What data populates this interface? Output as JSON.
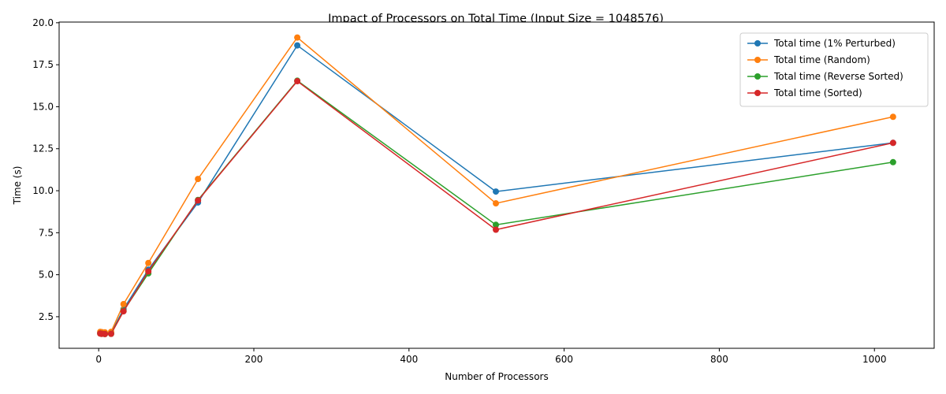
{
  "chart_data": {
    "type": "line",
    "title": "Impact of Processors on Total Time (Input Size = 1048576)",
    "xlabel": "Number of Processors",
    "ylabel": "Time (s)",
    "xlim": [
      -51,
      1077
    ],
    "ylim": [
      0.62,
      20.04
    ],
    "x_ticks": [
      0,
      200,
      400,
      600,
      800,
      1000
    ],
    "x_tick_labels": [
      "0",
      "200",
      "400",
      "600",
      "800",
      "1000"
    ],
    "y_ticks": [
      2.5,
      5.0,
      7.5,
      10.0,
      12.5,
      15.0,
      17.5,
      20.0
    ],
    "y_tick_labels": [
      "2.5",
      "5.0",
      "7.5",
      "10.0",
      "12.5",
      "15.0",
      "17.5",
      "20.0"
    ],
    "grid": false,
    "legend_position": "top-right",
    "x": [
      2,
      4,
      8,
      16,
      32,
      64,
      128,
      256,
      512,
      1024
    ],
    "series": [
      {
        "name": "Total time (1% Perturbed)",
        "color": "#1f77b4",
        "values": [
          1.55,
          1.53,
          1.52,
          1.53,
          2.95,
          5.3,
          9.3,
          18.65,
          9.95,
          12.85
        ]
      },
      {
        "name": "Total time (Random)",
        "color": "#ff7f0e",
        "values": [
          1.6,
          1.58,
          1.57,
          1.6,
          3.25,
          5.7,
          10.7,
          19.12,
          9.25,
          14.4
        ]
      },
      {
        "name": "Total time (Reverse Sorted)",
        "color": "#2ca02c",
        "values": [
          1.5,
          1.48,
          1.47,
          1.48,
          2.85,
          5.08,
          9.45,
          16.55,
          7.97,
          11.7
        ]
      },
      {
        "name": "Total time (Sorted)",
        "color": "#d62728",
        "values": [
          1.5,
          1.48,
          1.47,
          1.48,
          2.82,
          5.2,
          9.42,
          16.52,
          7.68,
          12.85
        ]
      }
    ]
  }
}
